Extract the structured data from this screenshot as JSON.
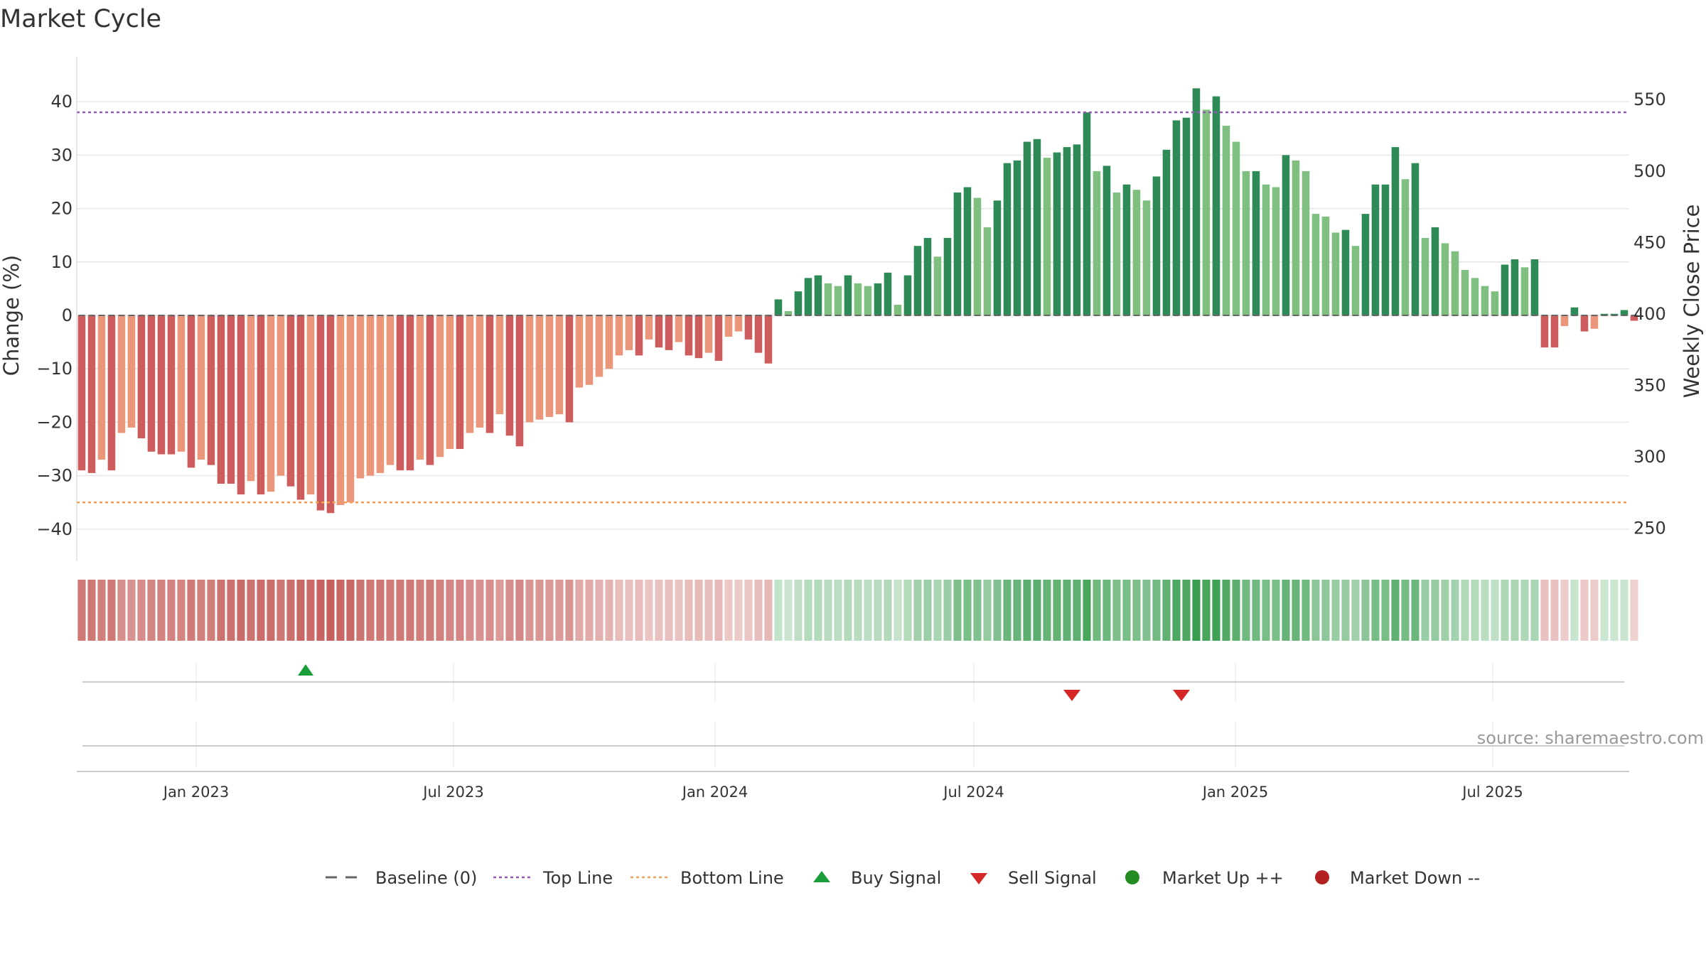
{
  "chart_data": {
    "type": "bar",
    "title": "Market Cycle",
    "ylabel": "Change (%)",
    "ylabel_right": "Weekly Close Price",
    "ylim": [
      -46,
      46
    ],
    "y_ticks": [
      -40,
      -30,
      -20,
      -10,
      0,
      10,
      20,
      30,
      40
    ],
    "y_tick_labels": [
      "−40",
      "−30",
      "−20",
      "−10",
      "0",
      "10",
      "20",
      "30",
      "40"
    ],
    "y2lim": [
      227,
      571
    ],
    "y2_ticks": [
      250,
      300,
      350,
      400,
      450,
      500,
      550
    ],
    "x_ticks": [
      "Jan 2023",
      "Jul 2023",
      "Jan 2024",
      "Jul 2024",
      "Jan 2025",
      "Jul 2025"
    ],
    "x_start": "2022-10-09",
    "x_end": "2025-10-05",
    "week_start": "2022-10-09",
    "reference_lines": {
      "baseline": 0,
      "top_line": 38,
      "bottom_line": -35
    },
    "values": [
      -29,
      -29.5,
      -27,
      -29,
      -22,
      -21,
      -23,
      -25.5,
      -26,
      -26,
      -25.5,
      -28.5,
      -27,
      -28,
      -31.5,
      -31.5,
      -33.5,
      -31,
      -33.5,
      -33,
      -30,
      -32,
      -34.5,
      -33.5,
      -36.5,
      -37,
      -35.5,
      -35,
      -30.5,
      -30,
      -29.5,
      -28,
      -29,
      -29,
      -27,
      -28,
      -26.5,
      -25,
      -25,
      -22,
      -21,
      -22,
      -18.5,
      -22.5,
      -24.5,
      -20,
      -19.5,
      -19,
      -18.5,
      -20,
      -13.5,
      -13,
      -11.5,
      -10,
      -7.5,
      -6.5,
      -7.5,
      -4.5,
      -6,
      -6.5,
      -5,
      -7.5,
      -8,
      -7,
      -8.5,
      -4,
      -3,
      -4.5,
      -7,
      -9,
      3,
      0.8,
      4.5,
      7,
      7.5,
      6,
      5.5,
      7.5,
      6,
      5.5,
      6,
      8,
      2,
      7.5,
      13,
      14.5,
      11,
      14.5,
      23,
      24,
      22,
      16.5,
      21.5,
      28.5,
      29,
      32.5,
      33,
      29.5,
      30.5,
      31.5,
      32,
      38,
      27,
      28,
      23,
      24.5,
      23.5,
      21.5,
      26,
      31,
      36.5,
      37,
      42.5,
      38.5,
      41,
      35.5,
      32.5,
      27,
      27,
      24.5,
      24,
      30,
      29,
      27,
      19,
      18.5,
      15.5,
      16,
      13,
      19,
      24.5,
      24.5,
      31.5,
      25.5,
      28.5,
      14.5,
      16.5,
      13.5,
      12,
      8.5,
      7,
      5.5,
      4.5,
      9.5,
      10.5,
      9,
      10.5,
      -6,
      -6,
      -2,
      1.5,
      -3,
      -2.5,
      0.3,
      0.3,
      1,
      -1
    ],
    "signals": [
      {
        "type": "buy",
        "date": "2023-03-19"
      },
      {
        "type": "sell",
        "date": "2024-09-08"
      },
      {
        "type": "sell",
        "date": "2024-11-24"
      }
    ],
    "legend": [
      "Baseline (0)",
      "Top Line",
      "Bottom Line",
      "Buy Signal",
      "Sell Signal",
      "Market Up ++",
      "Market Down --"
    ],
    "legend_position": "bottom",
    "grid": true,
    "colors": {
      "strong_up": "#2e8b57",
      "weak_up": "#7fbf7f",
      "strong_down": "#cd5c5c",
      "weak_down": "#e9967a",
      "top_line": "#9b59b6",
      "bottom_line": "#f0a050",
      "baseline": "#666666",
      "buy": "#1a9e3a",
      "sell": "#d62728",
      "market_up": "#228b22",
      "market_down": "#b22222",
      "heat_up_max": "#3a9e4f",
      "heat_down_max": "#c0504d"
    }
  },
  "source": "source: sharemaestro.com"
}
